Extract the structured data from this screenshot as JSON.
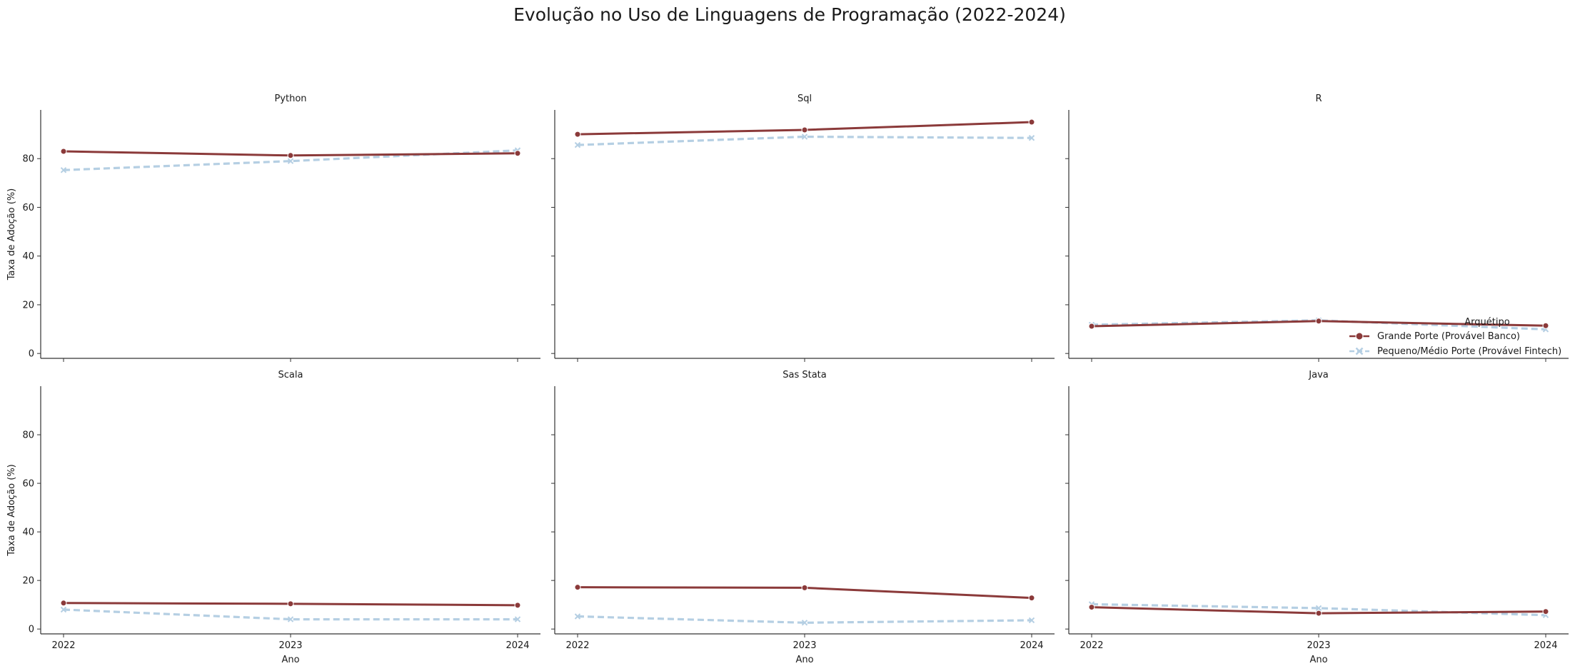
{
  "chart_data": {
    "type": "line",
    "title": "Evolução no Uso de Linguagens de Programação (2022-2024)",
    "xlabel": "Ano",
    "ylabel": "Taxa de Adoção (%)",
    "x": [
      "2022",
      "2023",
      "2024"
    ],
    "ylim": [
      -2,
      100
    ],
    "yticks": [
      0,
      20,
      40,
      60,
      80
    ],
    "grid": false,
    "legend": {
      "title": "Arquétipo",
      "placement": "right",
      "entries": [
        "Grande Porte (Provável Banco)",
        "Pequeno/Médio Porte (Provável Fintech)"
      ]
    },
    "colors": {
      "Grande Porte (Provável Banco)": "#8b3a3a",
      "Pequeno/Médio Porte (Provável Fintech)": "#b5cfe3"
    },
    "panels": [
      {
        "title": "Python",
        "series": [
          {
            "name": "Grande Porte (Provável Banco)",
            "values": [
              83,
              81.3,
              82.2
            ]
          },
          {
            "name": "Pequeno/Médio Porte (Provável Fintech)",
            "values": [
              75.3,
              79,
              83.4
            ]
          }
        ]
      },
      {
        "title": "Sql",
        "series": [
          {
            "name": "Grande Porte (Provável Banco)",
            "values": [
              90,
              91.8,
              95
            ]
          },
          {
            "name": "Pequeno/Médio Porte (Provável Fintech)",
            "values": [
              85.6,
              89,
              88.5
            ]
          }
        ]
      },
      {
        "title": "R",
        "series": [
          {
            "name": "Grande Porte (Provável Banco)",
            "values": [
              11.2,
              13.3,
              11.4
            ]
          },
          {
            "name": "Pequeno/Médio Porte (Provável Fintech)",
            "values": [
              11.8,
              13.6,
              9.9
            ]
          }
        ]
      },
      {
        "title": "Scala",
        "series": [
          {
            "name": "Grande Porte (Provável Banco)",
            "values": [
              10.7,
              10.4,
              9.8
            ]
          },
          {
            "name": "Pequeno/Médio Porte (Provável Fintech)",
            "values": [
              8,
              4,
              4
            ]
          }
        ]
      },
      {
        "title": "Sas Stata",
        "series": [
          {
            "name": "Grande Porte (Provável Banco)",
            "values": [
              17.2,
              17,
              12.8
            ]
          },
          {
            "name": "Pequeno/Médio Porte (Provável Fintech)",
            "values": [
              5.2,
              2.6,
              3.6
            ]
          }
        ]
      },
      {
        "title": "Java",
        "series": [
          {
            "name": "Grande Porte (Provável Banco)",
            "values": [
              9,
              6.5,
              7.2
            ]
          },
          {
            "name": "Pequeno/Médio Porte (Provável Fintech)",
            "values": [
              10.2,
              8.6,
              5.7
            ]
          }
        ]
      }
    ]
  }
}
